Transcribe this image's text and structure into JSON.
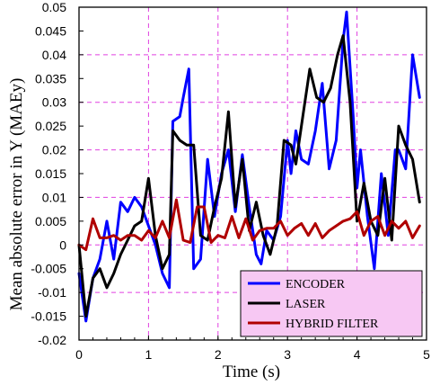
{
  "chart_data": {
    "type": "line",
    "xlabel": "Time (s)",
    "ylabel": "Mean absolute error in Y (MAEy)",
    "xlim": [
      0,
      5
    ],
    "ylim": [
      -0.02,
      0.05
    ],
    "xticks": [
      "0",
      "1",
      "2",
      "3",
      "4",
      "5"
    ],
    "yticks": [
      "0.05",
      "0.045",
      "0.04",
      "0.035",
      "0.03",
      "0.025",
      "0.02",
      "0.015",
      "0.01",
      "0.005",
      "0",
      "-0.005",
      "-0.01",
      "-0.015",
      "-0.02"
    ],
    "grid": "vertical and horizontal dashed",
    "grid_color": "#e040e0",
    "legend_placement": "bottom-right",
    "legend_background": "#f7c8f3",
    "series": [
      {
        "name": "ENCODER",
        "color": "#0000ff",
        "x": [
          0,
          0.1,
          0.2,
          0.3,
          0.4,
          0.5,
          0.6,
          0.7,
          0.8,
          0.9,
          1.0,
          1.1,
          1.2,
          1.3,
          1.35,
          1.45,
          1.5,
          1.58,
          1.65,
          1.75,
          1.85,
          1.95,
          2.05,
          2.15,
          2.25,
          2.35,
          2.45,
          2.55,
          2.62,
          2.7,
          2.8,
          2.9,
          3.0,
          3.05,
          3.12,
          3.2,
          3.3,
          3.4,
          3.5,
          3.6,
          3.7,
          3.8,
          3.85,
          3.95,
          4.0,
          4.05,
          4.15,
          4.25,
          4.35,
          4.45,
          4.55,
          4.6,
          4.7,
          4.8,
          4.9
        ],
        "values": [
          -0.006,
          -0.016,
          -0.007,
          -0.003,
          0.005,
          -0.003,
          0.009,
          0.007,
          0.01,
          0.008,
          0.004,
          0.0,
          -0.006,
          -0.009,
          0.026,
          0.027,
          0.031,
          0.037,
          -0.005,
          -0.003,
          0.018,
          0.006,
          0.015,
          0.02,
          0.007,
          0.019,
          0.008,
          -0.002,
          -0.004,
          0.003,
          0.001,
          0.006,
          0.022,
          0.015,
          0.024,
          0.018,
          0.017,
          0.024,
          0.034,
          0.016,
          0.022,
          0.043,
          0.049,
          0.026,
          0.012,
          0.02,
          0.006,
          -0.005,
          0.015,
          0.002,
          0.02,
          0.02,
          0.016,
          0.04,
          0.031
        ]
      },
      {
        "name": "LASER",
        "color": "#000000",
        "x": [
          0,
          0.1,
          0.2,
          0.3,
          0.4,
          0.5,
          0.6,
          0.7,
          0.8,
          0.9,
          1.0,
          1.1,
          1.2,
          1.3,
          1.35,
          1.45,
          1.55,
          1.65,
          1.75,
          1.85,
          1.95,
          2.05,
          2.15,
          2.25,
          2.35,
          2.45,
          2.55,
          2.65,
          2.75,
          2.85,
          2.95,
          3.05,
          3.12,
          3.22,
          3.32,
          3.42,
          3.52,
          3.62,
          3.72,
          3.8,
          3.9,
          4.0,
          4.1,
          4.2,
          4.3,
          4.4,
          4.5,
          4.6,
          4.7,
          4.8,
          4.9
        ],
        "values": [
          0.0,
          -0.015,
          -0.007,
          -0.005,
          -0.009,
          -0.006,
          -0.002,
          0.001,
          0.004,
          0.005,
          0.014,
          0.002,
          -0.005,
          -0.002,
          0.024,
          0.022,
          0.021,
          0.021,
          0.002,
          0.001,
          0.008,
          0.014,
          0.028,
          0.008,
          0.018,
          0.003,
          0.009,
          0.002,
          -0.002,
          0.004,
          0.022,
          0.021,
          0.017,
          0.027,
          0.037,
          0.031,
          0.03,
          0.033,
          0.04,
          0.044,
          0.03,
          0.005,
          0.013,
          0.005,
          0.002,
          0.014,
          0.001,
          0.025,
          0.021,
          0.018,
          0.009
        ]
      },
      {
        "name": "HYBRID FILTER",
        "color": "#b00000",
        "x": [
          0,
          0.1,
          0.2,
          0.3,
          0.4,
          0.5,
          0.6,
          0.7,
          0.8,
          0.9,
          1.0,
          1.1,
          1.2,
          1.3,
          1.4,
          1.5,
          1.6,
          1.7,
          1.8,
          1.9,
          2.0,
          2.1,
          2.2,
          2.3,
          2.4,
          2.5,
          2.6,
          2.7,
          2.8,
          2.9,
          3.0,
          3.1,
          3.2,
          3.3,
          3.4,
          3.5,
          3.6,
          3.7,
          3.8,
          3.9,
          4.0,
          4.1,
          4.2,
          4.3,
          4.4,
          4.5,
          4.6,
          4.7,
          4.8,
          4.9
        ],
        "values": [
          0.0,
          -0.001,
          0.0055,
          0.0015,
          0.0015,
          0.002,
          0.001,
          0.002,
          0.002,
          0.001,
          0.003,
          0.0015,
          0.005,
          0.0015,
          0.0095,
          0.001,
          0.0005,
          0.008,
          0.008,
          0.0005,
          0.002,
          0.0015,
          0.006,
          0.0015,
          0.0055,
          0.001,
          0.003,
          0.0035,
          0.0035,
          0.005,
          0.002,
          0.0035,
          0.0045,
          0.002,
          0.0045,
          0.0015,
          0.003,
          0.004,
          0.005,
          0.0055,
          0.007,
          0.002,
          0.005,
          0.006,
          0.002,
          0.005,
          0.0035,
          0.005,
          0.0015,
          0.004
        ]
      }
    ]
  }
}
